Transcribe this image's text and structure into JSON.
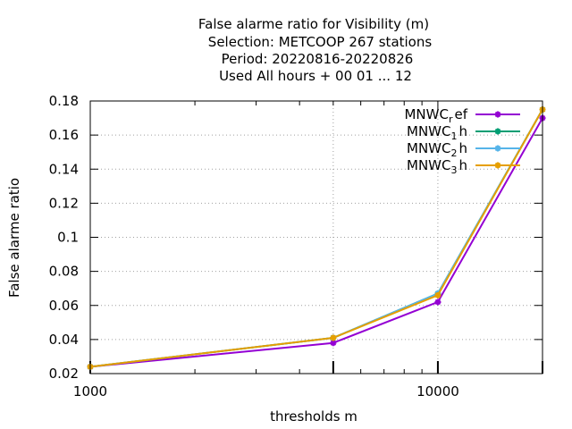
{
  "chart_data": {
    "type": "line",
    "title_lines": [
      "False alarme ratio  for Visibility (m)",
      "Selection: METCOOP    267 stations",
      "Period: 20220816-20220826",
      "Used  All hours + 00 01 ... 12"
    ],
    "xlabel": "thresholds m",
    "ylabel": "False alarme ratio",
    "x_scale": "log",
    "xlim": [
      1000,
      20000
    ],
    "ylim": [
      0.02,
      0.18
    ],
    "x_ticks": [
      {
        "value": 1000,
        "label": "1000"
      },
      {
        "value": 10000,
        "label": "10000"
      }
    ],
    "y_ticks": [
      {
        "value": 0.02,
        "label": "0.02"
      },
      {
        "value": 0.04,
        "label": "0.04"
      },
      {
        "value": 0.06,
        "label": "0.06"
      },
      {
        "value": 0.08,
        "label": "0.08"
      },
      {
        "value": 0.1,
        "label": "0.1"
      },
      {
        "value": 0.12,
        "label": "0.12"
      },
      {
        "value": 0.14,
        "label": "0.14"
      },
      {
        "value": 0.16,
        "label": "0.16"
      },
      {
        "value": 0.18,
        "label": "0.18"
      }
    ],
    "grid": true,
    "legend_position": "top-right",
    "x": [
      1000,
      5000,
      10000,
      20000
    ],
    "series": [
      {
        "name_main": "MNWC",
        "name_sub": "r",
        "name_rest": "ef",
        "color": "#9400d3",
        "values": [
          0.024,
          0.038,
          0.062,
          0.17
        ]
      },
      {
        "name_main": "MNWC",
        "name_sub": "1",
        "name_rest": "h",
        "color": "#009e73",
        "values": [
          0.024,
          0.041,
          0.067,
          0.175
        ]
      },
      {
        "name_main": "MNWC",
        "name_sub": "2",
        "name_rest": "h",
        "color": "#56b4e9",
        "values": [
          0.024,
          0.041,
          0.067,
          0.175
        ]
      },
      {
        "name_main": "MNWC",
        "name_sub": "3",
        "name_rest": "h",
        "color": "#e69f00",
        "values": [
          0.024,
          0.041,
          0.066,
          0.175
        ]
      }
    ]
  }
}
